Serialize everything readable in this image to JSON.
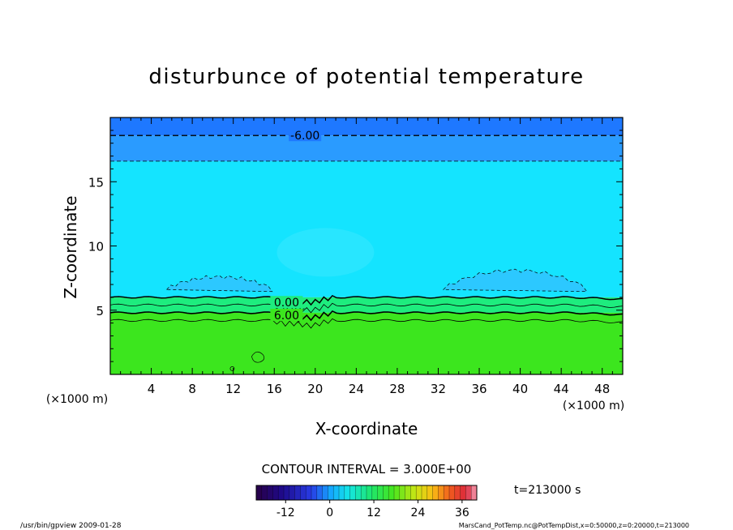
{
  "chart_data": {
    "type": "contour",
    "title": "disturbunce of potential temperature",
    "xlabel": "X-coordinate",
    "ylabel": "Z-coordinate",
    "x_unit": "(×1000 m)",
    "y_unit": "(×1000 m)",
    "xlim": [
      0,
      50
    ],
    "ylim": [
      0,
      20
    ],
    "x_ticks": [
      4,
      8,
      12,
      16,
      20,
      24,
      28,
      32,
      36,
      40,
      44,
      48
    ],
    "y_ticks": [
      5,
      10,
      15
    ],
    "contour_interval_text": "CONTOUR INTERVAL = 3.000E+00",
    "contour_labels": [
      {
        "text": "-6.00",
        "x": 19,
        "z": 18.6
      },
      {
        "text": "0.00",
        "x": 17.2,
        "z": 5.6
      },
      {
        "text": "6.00",
        "x": 17.2,
        "z": 4.6
      }
    ],
    "field_bands": [
      {
        "z_from": 18.6,
        "z_to": 20,
        "color": "#1E78FF"
      },
      {
        "z_from": 16.6,
        "z_to": 18.6,
        "color": "#2A9BFF"
      },
      {
        "z_from": 6.0,
        "z_to": 16.6,
        "color": "#14E4FF"
      },
      {
        "z_from": 4.8,
        "z_to": 6.0,
        "color": "#1EEC7E"
      },
      {
        "z_from": 0,
        "z_to": 4.8,
        "color": "#3CE61E"
      }
    ],
    "colorbar": {
      "ticks": [
        -12,
        0,
        12,
        24,
        36
      ],
      "min": -20,
      "max": 40,
      "levels": 40
    },
    "time_text": "t=213000 s"
  },
  "footer": {
    "left": "/usr/bin/gpview  2009-01-28",
    "right": "MarsCand_PotTemp.nc@PotTempDist,x=0:50000,z=0:20000,t=213000"
  }
}
